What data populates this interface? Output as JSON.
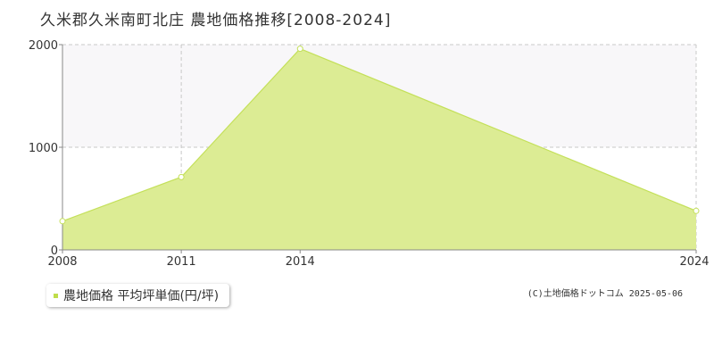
{
  "title": "久米郡久米南町北庄 農地価格推移[2008-2024]",
  "colors": {
    "area_fill": "#dcec94",
    "area_line": "#c4e05a",
    "band": "#f8f7f9",
    "grid": "#c8c8c8",
    "axis": "#888888"
  },
  "legend": {
    "label": "農地価格 平均坪単価(円/坪)",
    "color": "#bfdd4a"
  },
  "credit": "(C)土地価格ドットコム 2025-05-06",
  "chart_data": {
    "type": "area",
    "title": "久米郡久米南町北庄 農地価格推移[2008-2024]",
    "xlabel": "",
    "ylabel": "",
    "x": [
      2008,
      2011,
      2014,
      2024
    ],
    "xticks": [
      "2008",
      "2011",
      "2014",
      "2024"
    ],
    "yticks": [
      "0",
      "1000",
      "2000"
    ],
    "ylim": [
      0,
      2000
    ],
    "xlim": [
      2008,
      2024
    ],
    "grid": true,
    "series": [
      {
        "name": "農地価格 平均坪単価(円/坪)",
        "values": [
          280,
          710,
          1960,
          380
        ]
      }
    ],
    "legend_position": "bottom-left"
  }
}
